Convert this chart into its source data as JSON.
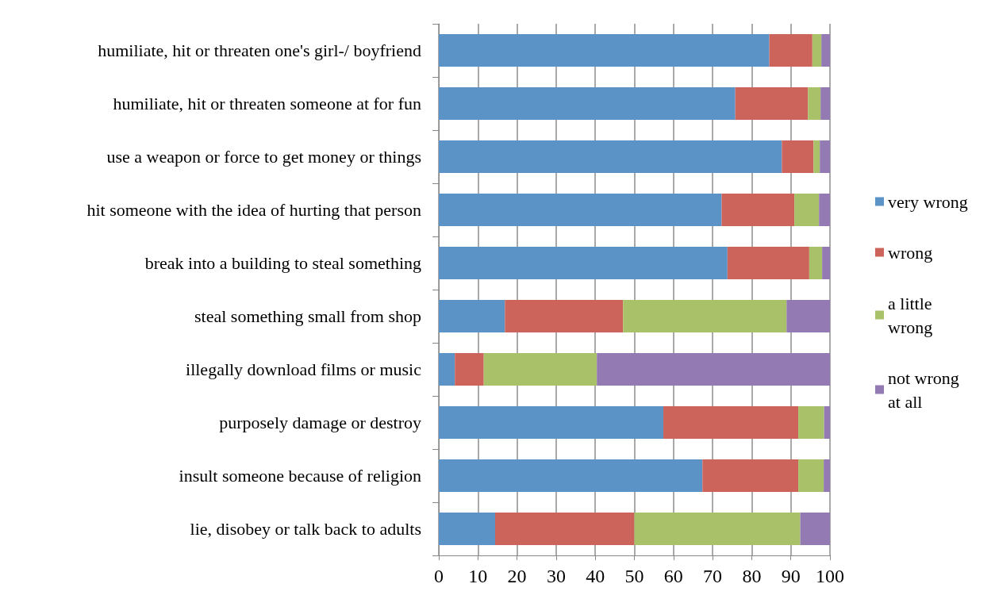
{
  "chart_data": {
    "type": "bar",
    "orientation": "horizontal",
    "stacked": true,
    "categories": [
      "humiliate, hit or threaten one's girl-/ boyfriend",
      "humiliate, hit or threaten someone at for fun",
      "use a weapon or force to get money or things",
      "hit someone with the idea of hurting that person",
      "break into a building to steal something",
      "steal something small from shop",
      "illegally download films or music",
      "purposely damage or destroy",
      "insult someone because of religion",
      "lie, disobey or talk back to adults"
    ],
    "series": [
      {
        "name": "very wrong",
        "color": "#5b93c7",
        "values": [
          84.5,
          75.8,
          87.7,
          72.3,
          73.8,
          16.9,
          4.1,
          57.4,
          67.4,
          14.4
        ]
      },
      {
        "name": "wrong",
        "color": "#cd645c",
        "values": [
          11.0,
          18.6,
          8.1,
          18.6,
          20.9,
          30.2,
          7.4,
          34.5,
          24.5,
          35.6
        ]
      },
      {
        "name": "a little wrong",
        "color": "#a9c26a",
        "values": [
          2.3,
          3.2,
          1.6,
          6.3,
          3.3,
          41.8,
          28.9,
          6.6,
          6.5,
          42.4
        ]
      },
      {
        "name": "not wrong at all",
        "color": "#937ab2",
        "values": [
          2.2,
          2.4,
          2.6,
          2.8,
          2.0,
          11.1,
          59.6,
          1.5,
          1.6,
          7.6
        ]
      }
    ],
    "xlim": [
      0,
      100
    ],
    "xticks": [
      0,
      10,
      20,
      30,
      40,
      50,
      60,
      70,
      80,
      90,
      100
    ],
    "grid": "x",
    "legend": "right"
  }
}
